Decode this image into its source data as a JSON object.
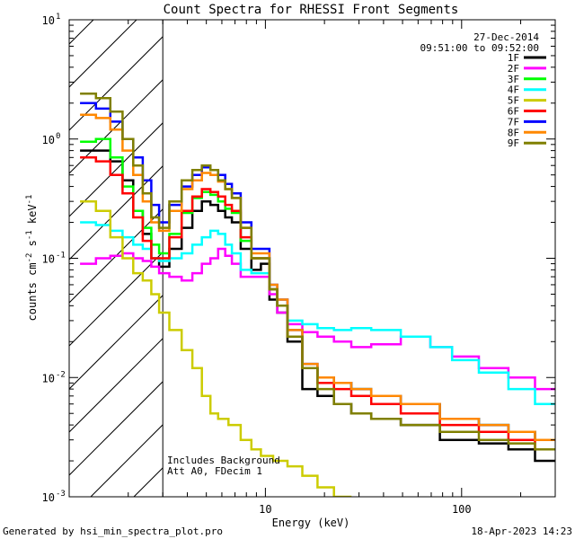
{
  "chart_data": {
    "type": "line",
    "title": "Count Spectra for RHESSI Front Segments",
    "xlabel": "Energy (keV)",
    "ylabel": "counts cm-2 s-1 keV-1",
    "xscale": "log",
    "yscale": "log",
    "xlim": [
      1.0,
      300.0
    ],
    "ylim": [
      0.001,
      10.0
    ],
    "x_ticks": [
      {
        "value": 10,
        "label": "10"
      },
      {
        "value": 100,
        "label": "100"
      }
    ],
    "y_ticks": [
      {
        "value": 0.001,
        "base": "10",
        "exp": "-3"
      },
      {
        "value": 0.01,
        "base": "10",
        "exp": "-2"
      },
      {
        "value": 0.1,
        "base": "10",
        "exp": "-1"
      },
      {
        "value": 1,
        "base": "10",
        "exp": "0"
      },
      {
        "value": 10,
        "base": "10",
        "exp": "1"
      }
    ],
    "hatched_region": {
      "x_start": 1.0,
      "x_end": 3.0
    },
    "date": "27-Dec-2014",
    "time_range": "09:51:00 to 09:52:00",
    "annotation": [
      "Includes Background",
      "Att A0, FDecim 1"
    ],
    "footer_left": "Generated by hsi_min_spectra_plot.pro",
    "footer_right": "18-Apr-2023 14:23",
    "series": [
      {
        "name": "1F",
        "color": "#000000",
        "points": [
          [
            1.25,
            0.8
          ],
          [
            1.5,
            0.8
          ],
          [
            1.75,
            0.65
          ],
          [
            2.0,
            0.45
          ],
          [
            2.25,
            0.25
          ],
          [
            2.5,
            0.16
          ],
          [
            2.75,
            0.1
          ],
          [
            3.0,
            0.085
          ],
          [
            3.5,
            0.12
          ],
          [
            4.0,
            0.18
          ],
          [
            4.5,
            0.25
          ],
          [
            5.0,
            0.3
          ],
          [
            5.5,
            0.28
          ],
          [
            6.0,
            0.25
          ],
          [
            6.5,
            0.22
          ],
          [
            7.0,
            0.2
          ],
          [
            8.0,
            0.12
          ],
          [
            9.0,
            0.08
          ],
          [
            10.0,
            0.09
          ],
          [
            11.0,
            0.045
          ],
          [
            12.0,
            0.035
          ],
          [
            14.0,
            0.02
          ],
          [
            17.0,
            0.008
          ],
          [
            20.0,
            0.007
          ],
          [
            25.0,
            0.006
          ],
          [
            30.0,
            0.005
          ],
          [
            40.0,
            0.0045
          ],
          [
            60.0,
            0.004
          ],
          [
            100.0,
            0.003
          ],
          [
            150.0,
            0.0028
          ],
          [
            200.0,
            0.0025
          ],
          [
            280.0,
            0.002
          ]
        ]
      },
      {
        "name": "2F",
        "color": "#ff00ff",
        "points": [
          [
            1.25,
            0.09
          ],
          [
            1.5,
            0.1
          ],
          [
            1.75,
            0.105
          ],
          [
            2.0,
            0.11
          ],
          [
            2.25,
            0.1
          ],
          [
            2.5,
            0.095
          ],
          [
            2.75,
            0.085
          ],
          [
            3.0,
            0.075
          ],
          [
            3.5,
            0.07
          ],
          [
            4.0,
            0.065
          ],
          [
            4.5,
            0.075
          ],
          [
            5.0,
            0.09
          ],
          [
            5.5,
            0.1
          ],
          [
            6.0,
            0.12
          ],
          [
            6.5,
            0.105
          ],
          [
            7.0,
            0.09
          ],
          [
            8.0,
            0.07
          ],
          [
            9.0,
            0.07
          ],
          [
            10.0,
            0.07
          ],
          [
            11.0,
            0.05
          ],
          [
            12.0,
            0.035
          ],
          [
            14.0,
            0.028
          ],
          [
            17.0,
            0.024
          ],
          [
            20.0,
            0.022
          ],
          [
            25.0,
            0.02
          ],
          [
            30.0,
            0.018
          ],
          [
            40.0,
            0.019
          ],
          [
            60.0,
            0.022
          ],
          [
            80.0,
            0.018
          ],
          [
            100.0,
            0.015
          ],
          [
            150.0,
            0.012
          ],
          [
            200.0,
            0.01
          ],
          [
            280.0,
            0.008
          ]
        ]
      },
      {
        "name": "3F",
        "color": "#00ff00",
        "points": [
          [
            1.25,
            0.95
          ],
          [
            1.5,
            1.0
          ],
          [
            1.75,
            0.7
          ],
          [
            2.0,
            0.4
          ],
          [
            2.25,
            0.25
          ],
          [
            2.5,
            0.18
          ],
          [
            2.75,
            0.13
          ],
          [
            3.0,
            0.11
          ],
          [
            3.5,
            0.16
          ],
          [
            4.0,
            0.24
          ],
          [
            4.5,
            0.32
          ],
          [
            5.0,
            0.36
          ],
          [
            5.5,
            0.34
          ],
          [
            6.0,
            0.3
          ],
          [
            6.5,
            0.26
          ],
          [
            7.0,
            0.24
          ],
          [
            8.0,
            0.14
          ],
          [
            9.0,
            0.1
          ],
          [
            10.0,
            0.1
          ],
          [
            11.0,
            0.055
          ],
          [
            12.0,
            0.04
          ],
          [
            14.0,
            0.022
          ],
          [
            17.0,
            0.012
          ],
          [
            20.0,
            0.01
          ],
          [
            25.0,
            0.009
          ],
          [
            30.0,
            0.008
          ],
          [
            40.0,
            0.007
          ],
          [
            60.0,
            0.006
          ],
          [
            100.0,
            0.0045
          ],
          [
            150.0,
            0.004
          ],
          [
            200.0,
            0.0035
          ],
          [
            280.0,
            0.003
          ]
        ]
      },
      {
        "name": "4F",
        "color": "#00ffff",
        "points": [
          [
            1.25,
            0.2
          ],
          [
            1.5,
            0.19
          ],
          [
            1.75,
            0.17
          ],
          [
            2.0,
            0.15
          ],
          [
            2.25,
            0.13
          ],
          [
            2.5,
            0.12
          ],
          [
            2.75,
            0.1
          ],
          [
            3.0,
            0.095
          ],
          [
            3.5,
            0.1
          ],
          [
            4.0,
            0.11
          ],
          [
            4.5,
            0.13
          ],
          [
            5.0,
            0.15
          ],
          [
            5.5,
            0.17
          ],
          [
            6.0,
            0.16
          ],
          [
            6.5,
            0.13
          ],
          [
            7.0,
            0.11
          ],
          [
            8.0,
            0.08
          ],
          [
            9.0,
            0.075
          ],
          [
            10.0,
            0.075
          ],
          [
            11.0,
            0.055
          ],
          [
            12.0,
            0.04
          ],
          [
            14.0,
            0.03
          ],
          [
            17.0,
            0.028
          ],
          [
            20.0,
            0.026
          ],
          [
            25.0,
            0.025
          ],
          [
            30.0,
            0.026
          ],
          [
            40.0,
            0.025
          ],
          [
            60.0,
            0.022
          ],
          [
            80.0,
            0.018
          ],
          [
            100.0,
            0.014
          ],
          [
            150.0,
            0.011
          ],
          [
            200.0,
            0.008
          ],
          [
            280.0,
            0.006
          ]
        ]
      },
      {
        "name": "5F",
        "color": "#cccc00",
        "points": [
          [
            1.25,
            0.3
          ],
          [
            1.5,
            0.25
          ],
          [
            1.75,
            0.15
          ],
          [
            2.0,
            0.1
          ],
          [
            2.25,
            0.075
          ],
          [
            2.5,
            0.065
          ],
          [
            2.75,
            0.05
          ],
          [
            3.0,
            0.035
          ],
          [
            3.5,
            0.025
          ],
          [
            4.0,
            0.017
          ],
          [
            4.5,
            0.012
          ],
          [
            5.0,
            0.007
          ],
          [
            5.5,
            0.005
          ],
          [
            6.0,
            0.0045
          ],
          [
            7.0,
            0.004
          ],
          [
            8.0,
            0.003
          ],
          [
            9.0,
            0.0025
          ],
          [
            10.0,
            0.0022
          ],
          [
            12.0,
            0.002
          ],
          [
            14.0,
            0.0018
          ],
          [
            17.0,
            0.0015
          ],
          [
            20.0,
            0.0012
          ],
          [
            25.0,
            0.001
          ]
        ]
      },
      {
        "name": "6F",
        "color": "#ff0000",
        "points": [
          [
            1.25,
            0.7
          ],
          [
            1.5,
            0.65
          ],
          [
            1.75,
            0.5
          ],
          [
            2.0,
            0.35
          ],
          [
            2.25,
            0.22
          ],
          [
            2.5,
            0.14
          ],
          [
            2.75,
            0.1
          ],
          [
            3.0,
            0.1
          ],
          [
            3.5,
            0.15
          ],
          [
            4.0,
            0.25
          ],
          [
            4.5,
            0.33
          ],
          [
            5.0,
            0.38
          ],
          [
            5.5,
            0.36
          ],
          [
            6.0,
            0.33
          ],
          [
            6.5,
            0.28
          ],
          [
            7.0,
            0.25
          ],
          [
            8.0,
            0.15
          ],
          [
            9.0,
            0.1
          ],
          [
            10.0,
            0.1
          ],
          [
            11.0,
            0.055
          ],
          [
            12.0,
            0.04
          ],
          [
            14.0,
            0.022
          ],
          [
            17.0,
            0.012
          ],
          [
            20.0,
            0.009
          ],
          [
            25.0,
            0.008
          ],
          [
            30.0,
            0.007
          ],
          [
            40.0,
            0.006
          ],
          [
            60.0,
            0.005
          ],
          [
            100.0,
            0.004
          ],
          [
            150.0,
            0.0035
          ],
          [
            200.0,
            0.003
          ],
          [
            280.0,
            0.0025
          ]
        ]
      },
      {
        "name": "7F",
        "color": "#0000ff",
        "points": [
          [
            1.25,
            2.0
          ],
          [
            1.5,
            1.8
          ],
          [
            1.75,
            1.4
          ],
          [
            2.0,
            1.0
          ],
          [
            2.25,
            0.7
          ],
          [
            2.5,
            0.45
          ],
          [
            2.75,
            0.28
          ],
          [
            3.0,
            0.2
          ],
          [
            3.5,
            0.28
          ],
          [
            4.0,
            0.4
          ],
          [
            4.5,
            0.5
          ],
          [
            5.0,
            0.58
          ],
          [
            5.5,
            0.55
          ],
          [
            6.0,
            0.5
          ],
          [
            6.5,
            0.42
          ],
          [
            7.0,
            0.35
          ],
          [
            8.0,
            0.2
          ],
          [
            9.0,
            0.12
          ],
          [
            10.0,
            0.12
          ],
          [
            11.0,
            0.06
          ],
          [
            12.0,
            0.045
          ],
          [
            14.0,
            0.025
          ],
          [
            17.0,
            0.013
          ],
          [
            20.0,
            0.01
          ],
          [
            25.0,
            0.009
          ],
          [
            30.0,
            0.008
          ],
          [
            40.0,
            0.007
          ],
          [
            60.0,
            0.006
          ],
          [
            100.0,
            0.0045
          ],
          [
            150.0,
            0.004
          ],
          [
            200.0,
            0.0035
          ],
          [
            280.0,
            0.003
          ]
        ]
      },
      {
        "name": "8F",
        "color": "#ff8800",
        "points": [
          [
            1.25,
            1.6
          ],
          [
            1.5,
            1.5
          ],
          [
            1.75,
            1.2
          ],
          [
            2.0,
            0.8
          ],
          [
            2.25,
            0.5
          ],
          [
            2.5,
            0.3
          ],
          [
            2.75,
            0.2
          ],
          [
            3.0,
            0.17
          ],
          [
            3.5,
            0.25
          ],
          [
            4.0,
            0.38
          ],
          [
            4.5,
            0.45
          ],
          [
            5.0,
            0.52
          ],
          [
            5.5,
            0.5
          ],
          [
            6.0,
            0.44
          ],
          [
            6.5,
            0.38
          ],
          [
            7.0,
            0.32
          ],
          [
            8.0,
            0.18
          ],
          [
            9.0,
            0.11
          ],
          [
            10.0,
            0.11
          ],
          [
            11.0,
            0.06
          ],
          [
            12.0,
            0.045
          ],
          [
            14.0,
            0.025
          ],
          [
            17.0,
            0.013
          ],
          [
            20.0,
            0.01
          ],
          [
            25.0,
            0.009
          ],
          [
            30.0,
            0.008
          ],
          [
            40.0,
            0.007
          ],
          [
            60.0,
            0.006
          ],
          [
            100.0,
            0.0045
          ],
          [
            150.0,
            0.004
          ],
          [
            200.0,
            0.0035
          ],
          [
            280.0,
            0.003
          ]
        ]
      },
      {
        "name": "9F",
        "color": "#808000",
        "points": [
          [
            1.25,
            2.4
          ],
          [
            1.5,
            2.2
          ],
          [
            1.75,
            1.7
          ],
          [
            2.0,
            1.0
          ],
          [
            2.25,
            0.6
          ],
          [
            2.5,
            0.35
          ],
          [
            2.75,
            0.22
          ],
          [
            3.0,
            0.18
          ],
          [
            3.5,
            0.3
          ],
          [
            4.0,
            0.45
          ],
          [
            4.5,
            0.55
          ],
          [
            5.0,
            0.6
          ],
          [
            5.5,
            0.55
          ],
          [
            6.0,
            0.45
          ],
          [
            6.5,
            0.38
          ],
          [
            7.0,
            0.32
          ],
          [
            8.0,
            0.18
          ],
          [
            9.0,
            0.1
          ],
          [
            10.0,
            0.1
          ],
          [
            11.0,
            0.055
          ],
          [
            12.0,
            0.04
          ],
          [
            14.0,
            0.022
          ],
          [
            17.0,
            0.012
          ],
          [
            20.0,
            0.008
          ],
          [
            25.0,
            0.006
          ],
          [
            30.0,
            0.005
          ],
          [
            40.0,
            0.0045
          ],
          [
            60.0,
            0.004
          ],
          [
            100.0,
            0.0035
          ],
          [
            150.0,
            0.003
          ],
          [
            200.0,
            0.0028
          ],
          [
            280.0,
            0.0025
          ]
        ]
      }
    ]
  }
}
